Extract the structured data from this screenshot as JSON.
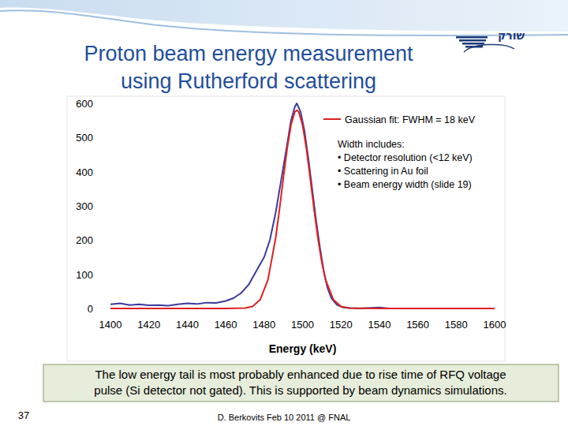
{
  "slide": {
    "title": [
      "Proton beam energy measurement",
      "using Rutherford scattering"
    ],
    "logo": "שורק",
    "note": [
      "The low energy tail is most probably enhanced due to rise time of RFQ voltage",
      "pulse (Si detector not gated). This is supported by beam dynamics simulations."
    ],
    "page_number": "37",
    "footer": "D. Berkovits Feb 10 2011 @ FNAL"
  },
  "chart_data": {
    "type": "line",
    "x_label": "Energy (keV)",
    "xlim": [
      1400,
      1600
    ],
    "xticks": [
      1400,
      1420,
      1440,
      1460,
      1480,
      1500,
      1520,
      1540,
      1560,
      1580,
      1600
    ],
    "ylim": [
      0,
      600
    ],
    "yticks": [
      0,
      100,
      200,
      300,
      400,
      500,
      600
    ],
    "grid": false,
    "legend": "top-right",
    "annotations": [
      "Width includes:",
      "• Detector resolution (<12 keV)",
      "• Scattering in Au foil",
      "• Beam energy width (slide 19)"
    ],
    "series": [
      {
        "color": "#3b3b9e",
        "line_style": "solid",
        "x": [
          1400,
          1405,
          1410,
          1415,
          1420,
          1425,
          1430,
          1435,
          1440,
          1445,
          1450,
          1455,
          1460,
          1464,
          1468,
          1472,
          1476,
          1480,
          1483,
          1486,
          1489,
          1492,
          1494,
          1496,
          1497,
          1499,
          1501,
          1503,
          1505,
          1507,
          1509,
          1511,
          1513,
          1515,
          1518,
          1521,
          1525,
          1530,
          1540,
          1545,
          1560,
          1580,
          1600
        ],
        "values": [
          12,
          15,
          10,
          12,
          9,
          10,
          8,
          12,
          15,
          13,
          17,
          16,
          22,
          30,
          45,
          70,
          110,
          150,
          200,
          280,
          380,
          480,
          550,
          590,
          600,
          575,
          520,
          440,
          350,
          260,
          180,
          110,
          60,
          30,
          10,
          3,
          1,
          0,
          3,
          0,
          0,
          0,
          0
        ]
      },
      {
        "name": "Gaussian fit: FWHM = 18 keV",
        "color": "#e02020",
        "line_style": "solid",
        "x": [
          1400,
          1460,
          1470,
          1474,
          1478,
          1482,
          1486,
          1488,
          1490,
          1492,
          1494,
          1496,
          1497,
          1498,
          1500,
          1502,
          1504,
          1506,
          1508,
          1510,
          1512,
          1516,
          1520,
          1524,
          1540,
          1600
        ],
        "values": [
          0,
          0,
          1,
          6,
          26,
          84,
          206,
          290,
          381,
          468,
          537,
          575,
          580,
          575,
          537,
          468,
          381,
          290,
          206,
          136,
          84,
          26,
          6,
          1,
          0,
          0
        ]
      }
    ]
  }
}
